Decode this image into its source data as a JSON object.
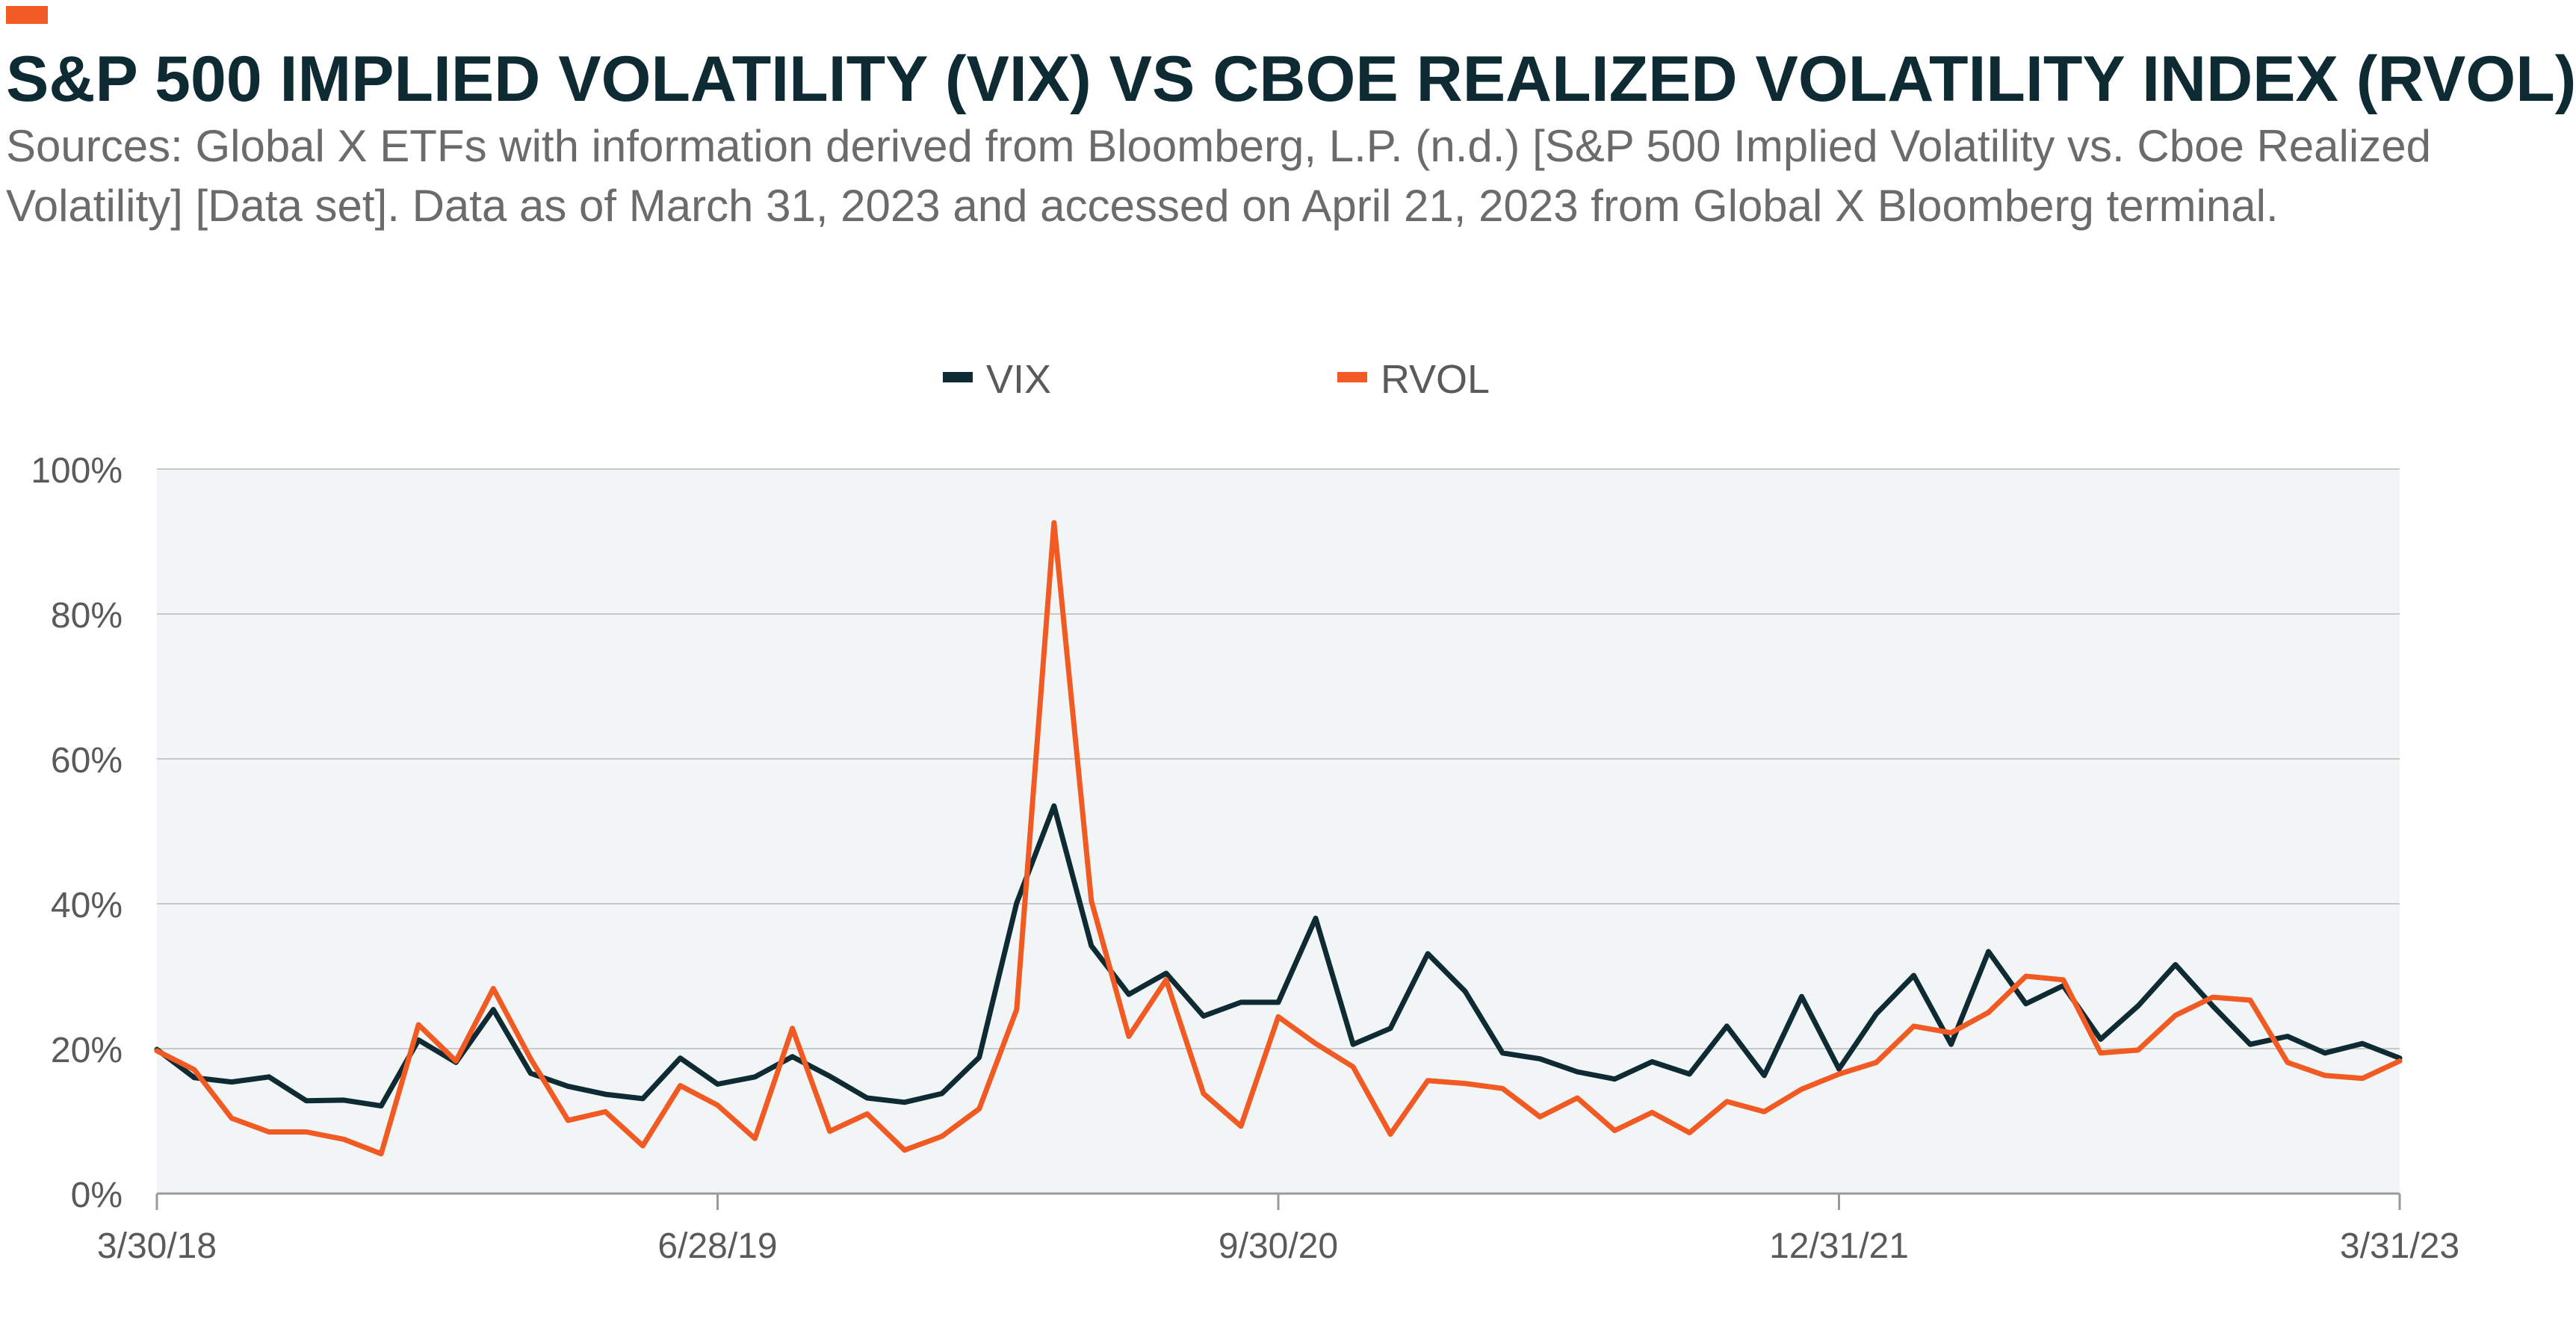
{
  "header": {
    "title": "S&P 500 IMPLIED VOLATILITY (VIX) VS CBOE REALIZED VOLATILITY INDEX (RVOL)",
    "subtitle": "Sources: Global X ETFs with information derived from Bloomberg, L.P. (n.d.) [S&P 500 Implied Volatility vs. Cboe Realized Volatility] [Data set]. Data as of March 31, 2023 and accessed on April 21, 2023 from Global X Bloomberg terminal."
  },
  "colors": {
    "accent": "#f15a22",
    "vix": "#0e2b33",
    "rvol": "#f15a22",
    "plot_background": "#f2f5f6",
    "grid": "#c8c8c8",
    "text": "#5a5a5a"
  },
  "chart_data": {
    "type": "line",
    "title": "S&P 500 IMPLIED VOLATILITY (VIX) VS CBOE REALIZED VOLATILITY INDEX (RVOL)",
    "xlabel": "",
    "ylabel": "",
    "ylim": [
      0,
      100
    ],
    "yticks": [
      "0%",
      "20%",
      "40%",
      "60%",
      "80%",
      "100%"
    ],
    "ytick_values": [
      0,
      20,
      40,
      60,
      80,
      100
    ],
    "x_tick_labels": [
      "3/30/18",
      "6/28/19",
      "9/30/20",
      "12/31/21",
      "3/31/23"
    ],
    "x_tick_indices": [
      0,
      15,
      30,
      45,
      60
    ],
    "x": [
      "3/30/18",
      "4/30/18",
      "5/31/18",
      "6/29/18",
      "7/31/18",
      "8/31/18",
      "9/28/18",
      "10/31/18",
      "11/30/18",
      "12/31/18",
      "1/31/19",
      "2/28/19",
      "3/29/19",
      "4/30/19",
      "5/31/19",
      "6/28/19",
      "7/31/19",
      "8/30/19",
      "9/30/19",
      "10/31/19",
      "11/29/19",
      "12/31/19",
      "1/31/20",
      "2/28/20",
      "3/31/20",
      "4/30/20",
      "5/29/20",
      "6/30/20",
      "7/31/20",
      "8/31/20",
      "9/30/20",
      "10/30/20",
      "11/30/20",
      "12/31/20",
      "1/29/21",
      "2/26/21",
      "3/31/21",
      "4/30/21",
      "5/28/21",
      "6/30/21",
      "7/30/21",
      "8/31/21",
      "9/30/21",
      "10/29/21",
      "11/30/21",
      "12/31/21",
      "1/31/22",
      "2/28/22",
      "3/31/22",
      "4/29/22",
      "5/31/22",
      "6/30/22",
      "7/29/22",
      "8/31/22",
      "9/30/22",
      "10/31/22",
      "11/30/22",
      "12/30/22",
      "1/31/23",
      "2/28/23",
      "3/31/23"
    ],
    "series": [
      {
        "name": "VIX",
        "color": "#0e2b33",
        "values": [
          19.9,
          16.0,
          15.4,
          16.1,
          12.8,
          12.9,
          12.1,
          21.2,
          18.1,
          25.4,
          16.6,
          14.8,
          13.7,
          13.1,
          18.7,
          15.1,
          16.1,
          18.9,
          16.2,
          13.2,
          12.6,
          13.8,
          18.8,
          40.1,
          53.5,
          34.2,
          27.5,
          30.4,
          24.5,
          26.4,
          26.4,
          38.0,
          20.6,
          22.8,
          33.1,
          27.9,
          19.4,
          18.6,
          16.8,
          15.8,
          18.2,
          16.5,
          23.1,
          16.3,
          27.2,
          17.2,
          24.8,
          30.1,
          20.6,
          33.4,
          26.2,
          28.7,
          21.3,
          25.9,
          31.6,
          25.9,
          20.6,
          21.7,
          19.4,
          20.7,
          18.7
        ]
      },
      {
        "name": "RVOL",
        "color": "#f15a22",
        "values": [
          19.7,
          17.1,
          10.4,
          8.5,
          8.5,
          7.5,
          5.5,
          23.3,
          18.3,
          28.3,
          18.6,
          10.1,
          11.3,
          6.6,
          14.9,
          12.2,
          7.6,
          22.8,
          8.6,
          11.0,
          6.0,
          7.9,
          11.7,
          25.4,
          92.6,
          40.4,
          21.7,
          29.5,
          13.8,
          9.3,
          24.4,
          20.7,
          17.5,
          8.2,
          15.6,
          15.2,
          14.5,
          10.6,
          13.2,
          8.7,
          11.2,
          8.4,
          12.7,
          11.3,
          14.4,
          16.5,
          18.1,
          23.1,
          22.2,
          25.0,
          30.0,
          29.5,
          19.4,
          19.8,
          24.6,
          27.1,
          26.7,
          18.1,
          16.3,
          15.9,
          18.3
        ]
      }
    ],
    "legend": {
      "position": "top-center",
      "entries": [
        "VIX",
        "RVOL"
      ]
    },
    "grid": true,
    "grid_axis": "y"
  }
}
